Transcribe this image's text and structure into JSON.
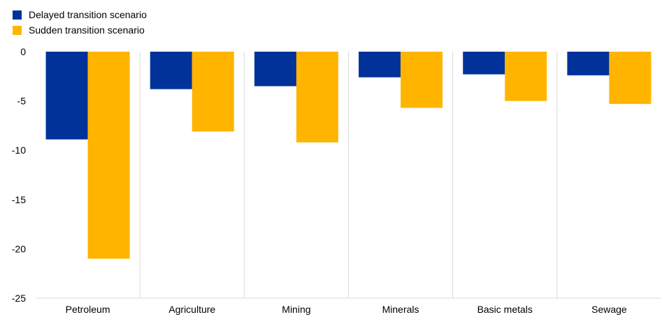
{
  "chart_data": {
    "type": "bar",
    "categories": [
      "Petroleum",
      "Agriculture",
      "Mining",
      "Minerals",
      "Basic metals",
      "Sewage"
    ],
    "series": [
      {
        "name": "Delayed transition scenario",
        "color": "#003299",
        "values": [
          -8.9,
          -3.8,
          -3.5,
          -2.6,
          -2.3,
          -2.4
        ]
      },
      {
        "name": "Sudden transition scenario",
        "color": "#FFB400",
        "values": [
          -21.0,
          -8.1,
          -9.2,
          -5.7,
          -5.0,
          -5.3
        ]
      }
    ],
    "ylim": [
      -25,
      0
    ],
    "yticks": [
      0,
      -5,
      -10,
      -15,
      -20,
      -25
    ],
    "grid": "vertical-separators",
    "legend": "top-left"
  }
}
